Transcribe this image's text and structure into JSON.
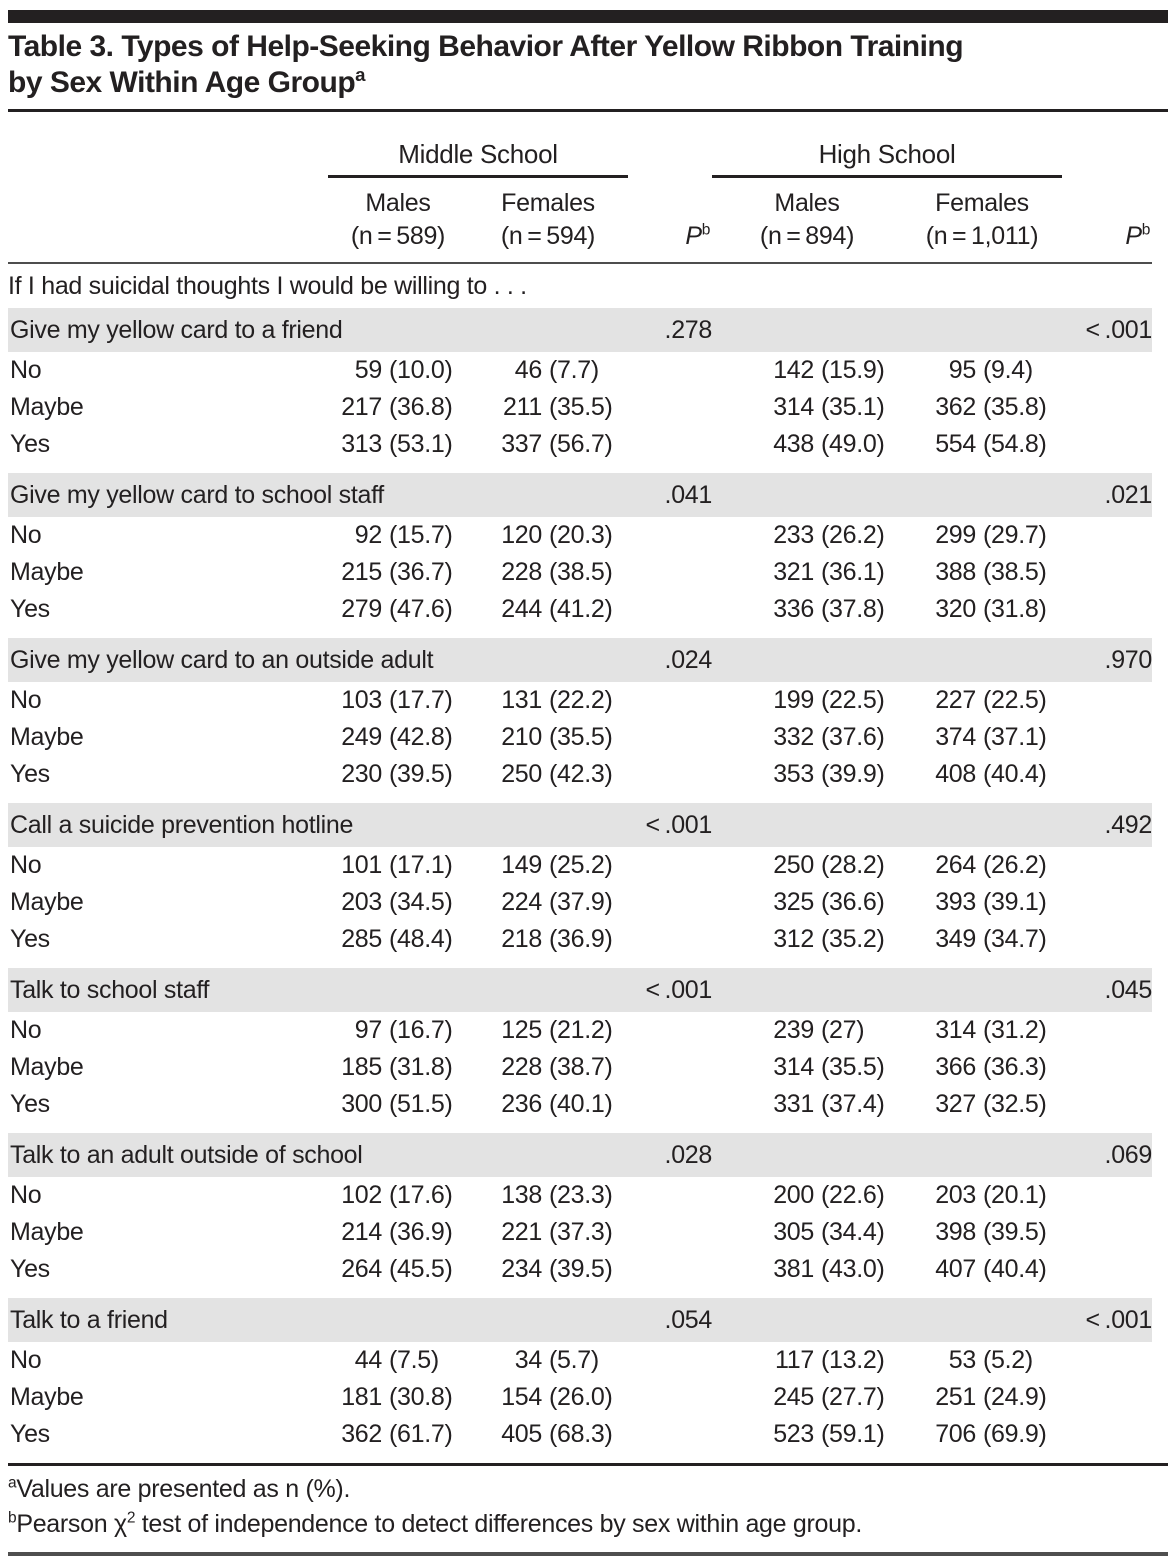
{
  "title": {
    "line1": "Table 3. Types of Help-Seeking Behavior After Yellow Ribbon Training",
    "line2": "by Sex Within Age Group",
    "sup": "a"
  },
  "header": {
    "group_ms": "Middle School",
    "group_hs": "High School",
    "cols": [
      {
        "line1": "Males",
        "line2": "(n = 589)"
      },
      {
        "line1": "Females",
        "line2": "(n = 594)"
      },
      {
        "p": "P",
        "sup": "b"
      },
      {
        "line1": "Males",
        "line2": "(n = 894)"
      },
      {
        "line1": "Females",
        "line2": "(n = 1,011)"
      },
      {
        "p": "P",
        "sup": "b"
      }
    ]
  },
  "intro": "If I had suicidal thoughts I would be willing to . . .",
  "sections": [
    {
      "label": "Give my yellow card to a friend",
      "p_ms": ".278",
      "p_hs": "< .001",
      "rows": [
        {
          "label": "No",
          "ms_m": "59 (10.0)",
          "ms_f": "46 (7.7)",
          "hs_m": "142 (15.9)",
          "hs_f": "95 (9.4)"
        },
        {
          "label": "Maybe",
          "ms_m": "217 (36.8)",
          "ms_f": "211 (35.5)",
          "hs_m": "314 (35.1)",
          "hs_f": "362 (35.8)"
        },
        {
          "label": "Yes",
          "ms_m": "313 (53.1)",
          "ms_f": "337 (56.7)",
          "hs_m": "438 (49.0)",
          "hs_f": "554 (54.8)"
        }
      ]
    },
    {
      "label": "Give my yellow card to school staff",
      "p_ms": ".041",
      "p_hs": ".021",
      "rows": [
        {
          "label": "No",
          "ms_m": "92 (15.7)",
          "ms_f": "120 (20.3)",
          "hs_m": "233 (26.2)",
          "hs_f": "299 (29.7)"
        },
        {
          "label": "Maybe",
          "ms_m": "215 (36.7)",
          "ms_f": "228 (38.5)",
          "hs_m": "321 (36.1)",
          "hs_f": "388 (38.5)"
        },
        {
          "label": "Yes",
          "ms_m": "279 (47.6)",
          "ms_f": "244 (41.2)",
          "hs_m": "336 (37.8)",
          "hs_f": "320 (31.8)"
        }
      ]
    },
    {
      "label": "Give my yellow card to an outside adult",
      "p_ms": ".024",
      "p_hs": ".970",
      "rows": [
        {
          "label": "No",
          "ms_m": "103 (17.7)",
          "ms_f": "131 (22.2)",
          "hs_m": "199 (22.5)",
          "hs_f": "227 (22.5)"
        },
        {
          "label": "Maybe",
          "ms_m": "249 (42.8)",
          "ms_f": "210 (35.5)",
          "hs_m": "332 (37.6)",
          "hs_f": "374 (37.1)"
        },
        {
          "label": "Yes",
          "ms_m": "230 (39.5)",
          "ms_f": "250 (42.3)",
          "hs_m": "353 (39.9)",
          "hs_f": "408 (40.4)"
        }
      ]
    },
    {
      "label": "Call a suicide prevention hotline",
      "p_ms": "< .001",
      "p_hs": ".492",
      "rows": [
        {
          "label": "No",
          "ms_m": "101 (17.1)",
          "ms_f": "149 (25.2)",
          "hs_m": "250 (28.2)",
          "hs_f": "264 (26.2)"
        },
        {
          "label": "Maybe",
          "ms_m": "203 (34.5)",
          "ms_f": "224 (37.9)",
          "hs_m": "325 (36.6)",
          "hs_f": "393 (39.1)"
        },
        {
          "label": "Yes",
          "ms_m": "285 (48.4)",
          "ms_f": "218 (36.9)",
          "hs_m": "312 (35.2)",
          "hs_f": "349 (34.7)"
        }
      ]
    },
    {
      "label": "Talk to school staff",
      "p_ms": "< .001",
      "p_hs": ".045",
      "rows": [
        {
          "label": "No",
          "ms_m": "97 (16.7)",
          "ms_f": "125 (21.2)",
          "hs_m": "239 (27)",
          "hs_f": "314 (31.2)"
        },
        {
          "label": "Maybe",
          "ms_m": "185 (31.8)",
          "ms_f": "228 (38.7)",
          "hs_m": "314 (35.5)",
          "hs_f": "366 (36.3)"
        },
        {
          "label": "Yes",
          "ms_m": "300 (51.5)",
          "ms_f": "236 (40.1)",
          "hs_m": "331 (37.4)",
          "hs_f": "327 (32.5)"
        }
      ]
    },
    {
      "label": "Talk to an adult outside of school",
      "p_ms": ".028",
      "p_hs": ".069",
      "rows": [
        {
          "label": "No",
          "ms_m": "102 (17.6)",
          "ms_f": "138 (23.3)",
          "hs_m": "200 (22.6)",
          "hs_f": "203 (20.1)"
        },
        {
          "label": "Maybe",
          "ms_m": "214 (36.9)",
          "ms_f": "221 (37.3)",
          "hs_m": "305 (34.4)",
          "hs_f": "398 (39.5)"
        },
        {
          "label": "Yes",
          "ms_m": "264 (45.5)",
          "ms_f": "234 (39.5)",
          "hs_m": "381 (43.0)",
          "hs_f": "407 (40.4)"
        }
      ]
    },
    {
      "label": "Talk to a friend",
      "p_ms": ".054",
      "p_hs": "< .001",
      "rows": [
        {
          "label": "No",
          "ms_m": "44 (7.5)",
          "ms_f": "34 (5.7)",
          "hs_m": "117 (13.2)",
          "hs_f": "53 (5.2)"
        },
        {
          "label": "Maybe",
          "ms_m": "181 (30.8)",
          "ms_f": "154 (26.0)",
          "hs_m": "245 (27.7)",
          "hs_f": "251 (24.9)"
        },
        {
          "label": "Yes",
          "ms_m": "362 (61.7)",
          "ms_f": "405 (68.3)",
          "hs_m": "523 (59.1)",
          "hs_f": "706 (69.9)"
        }
      ]
    }
  ],
  "footnotes": {
    "a_marker": "a",
    "a_text": "Values are presented as n (%).",
    "b_marker": "b",
    "b_pre": "Pearson χ",
    "b_sup": "2",
    "b_post": " test of independence to detect differences by sex within age group."
  }
}
